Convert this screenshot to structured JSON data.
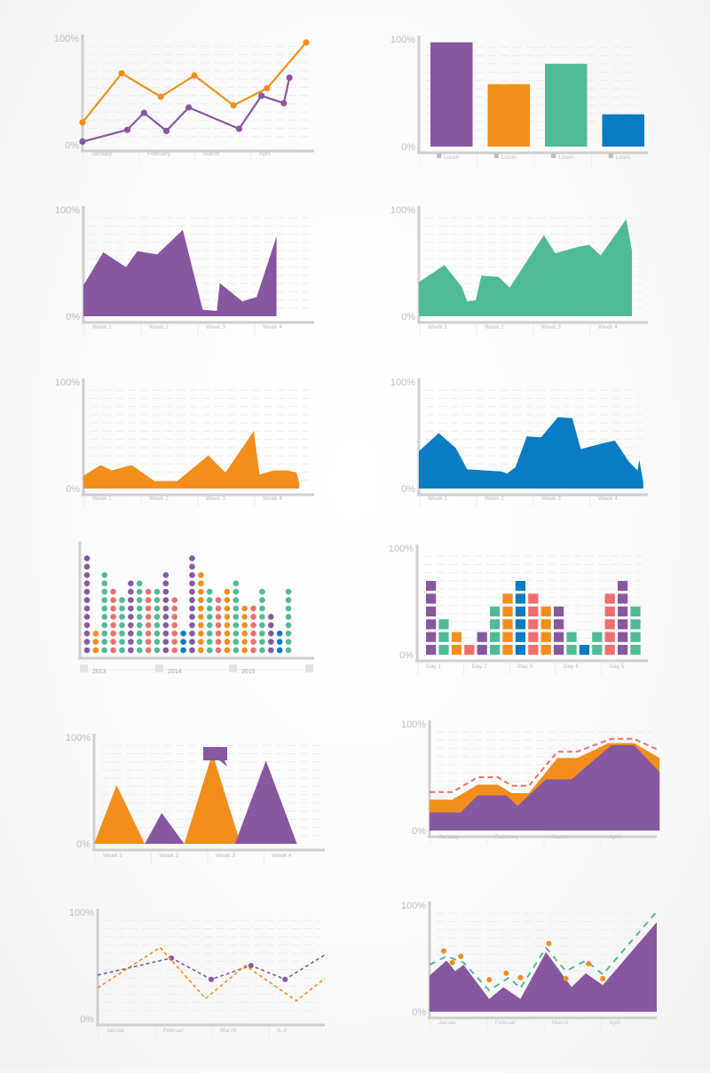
{
  "charts": [
    {
      "id": "months-line",
      "type": "line",
      "ytick_top": "100%",
      "ytick_bottom": "0%",
      "categories": [
        "January",
        "February",
        "March",
        "April"
      ],
      "sublabel": "",
      "series": [
        {
          "color": "#F28E1C",
          "points": [
            [
              0,
              21
            ],
            [
              0.7,
              67
            ],
            [
              1.4,
              45
            ],
            [
              2.0,
              65
            ],
            [
              2.7,
              37
            ],
            [
              3.3,
              53
            ],
            [
              4.0,
              96
            ]
          ]
        },
        {
          "color": "#8757A0",
          "points": [
            [
              0,
              3
            ],
            [
              0.8,
              14
            ],
            [
              1.1,
              30
            ],
            [
              1.5,
              13
            ],
            [
              1.9,
              35
            ],
            [
              2.8,
              15
            ],
            [
              3.2,
              46
            ],
            [
              3.6,
              39
            ],
            [
              3.7,
              63
            ]
          ]
        }
      ]
    },
    {
      "id": "lorem-bars",
      "type": "bar",
      "ytick_top": "100%",
      "ytick_bottom": "0%",
      "categories": [
        "Lorem",
        "Lorem",
        "Lorem",
        "Lorem"
      ],
      "values": [
        97,
        58,
        77,
        30
      ],
      "colors": [
        "#8757A0",
        "#F28E1C",
        "#50BA97",
        "#0A7BC5"
      ]
    },
    {
      "id": "weeks-area-purple",
      "type": "area",
      "ytick_top": "100%",
      "ytick_bottom": "0%",
      "categories": [
        "Week 1",
        "Week 2",
        "Week 3",
        "Week 4"
      ],
      "color": "#8757A0",
      "points": [
        [
          0,
          29
        ],
        [
          0.35,
          60
        ],
        [
          0.75,
          46
        ],
        [
          0.95,
          61
        ],
        [
          1.3,
          58
        ],
        [
          1.75,
          81
        ],
        [
          2.1,
          6
        ],
        [
          2.35,
          5
        ],
        [
          2.4,
          31
        ],
        [
          2.8,
          14
        ],
        [
          3.05,
          18
        ],
        [
          3.4,
          75
        ],
        [
          3.4,
          0
        ]
      ]
    },
    {
      "id": "weeks-area-green",
      "type": "area",
      "ytick_top": "100%",
      "ytick_bottom": "0%",
      "categories": [
        "Week 1",
        "Week 2",
        "Week 3",
        "Week 4"
      ],
      "color": "#50BA97",
      "points": [
        [
          0,
          32
        ],
        [
          0.45,
          48
        ],
        [
          0.75,
          28
        ],
        [
          0.85,
          14
        ],
        [
          1.0,
          15
        ],
        [
          1.1,
          38
        ],
        [
          1.4,
          37
        ],
        [
          1.6,
          27
        ],
        [
          2.2,
          76
        ],
        [
          2.4,
          59
        ],
        [
          2.8,
          65
        ],
        [
          3.0,
          67
        ],
        [
          3.2,
          57
        ],
        [
          3.65,
          91
        ],
        [
          3.75,
          62
        ],
        [
          3.75,
          0
        ]
      ]
    },
    {
      "id": "weeks-area-orange",
      "type": "area",
      "ytick_top": "100%",
      "ytick_bottom": "0%",
      "categories": [
        "Week 1",
        "Week 2",
        "Week 3",
        "Week 4"
      ],
      "color": "#F28E1C",
      "points": [
        [
          0,
          12
        ],
        [
          0.3,
          22
        ],
        [
          0.5,
          17
        ],
        [
          0.85,
          22
        ],
        [
          1.25,
          7
        ],
        [
          1.65,
          7
        ],
        [
          2.2,
          31
        ],
        [
          2.5,
          15
        ],
        [
          3.0,
          54
        ],
        [
          3.1,
          13
        ],
        [
          3.35,
          17
        ],
        [
          3.6,
          17
        ],
        [
          3.75,
          15
        ],
        [
          3.8,
          5
        ],
        [
          3.8,
          0
        ]
      ]
    },
    {
      "id": "weeks-area-blue",
      "type": "area",
      "ytick_top": "100%",
      "ytick_bottom": "0%",
      "categories": [
        "Week 1",
        "Week 2",
        "Week 3",
        "Week 4"
      ],
      "color": "#0A7BC5",
      "points": [
        [
          0,
          35
        ],
        [
          0.35,
          52
        ],
        [
          0.65,
          38
        ],
        [
          0.85,
          18
        ],
        [
          1.45,
          16
        ],
        [
          1.55,
          14
        ],
        [
          1.7,
          20
        ],
        [
          1.9,
          49
        ],
        [
          2.15,
          48
        ],
        [
          2.45,
          67
        ],
        [
          2.7,
          66
        ],
        [
          2.85,
          37
        ],
        [
          3.2,
          42
        ],
        [
          3.45,
          45
        ],
        [
          3.7,
          25
        ],
        [
          3.85,
          17
        ],
        [
          3.88,
          27
        ],
        [
          3.95,
          6
        ],
        [
          3.95,
          0
        ]
      ]
    },
    {
      "id": "years-dots",
      "type": "dot-columns",
      "categories": [
        "2013",
        "2014",
        "2015"
      ],
      "colors": {
        "p": "#8757A0",
        "o": "#F28E1C",
        "g": "#50BA97",
        "r": "#EE6F6E",
        "b": "#0A7BC5"
      },
      "columns": [
        {
          "color": "p",
          "count": 12
        },
        {
          "color": "o",
          "count": 3
        },
        {
          "color": "g",
          "count": 10
        },
        {
          "color": "r",
          "count": 8
        },
        {
          "color": "g",
          "count": 7
        },
        {
          "color": "p",
          "count": 9
        },
        {
          "color": "g",
          "count": 9
        },
        {
          "color": "r",
          "count": 8
        },
        {
          "color": "g",
          "count": 8
        },
        {
          "color": "p",
          "count": 10
        },
        {
          "color": "r",
          "count": 7
        },
        {
          "color": "b",
          "count": 3
        },
        {
          "color": "p",
          "count": 12
        },
        {
          "color": "o",
          "count": 10
        },
        {
          "color": "g",
          "count": 8
        },
        {
          "color": "r",
          "count": 7
        },
        {
          "color": "o",
          "count": 8
        },
        {
          "color": "g",
          "count": 9
        },
        {
          "color": "o",
          "count": 6
        },
        {
          "color": "r",
          "count": 6
        },
        {
          "color": "g",
          "count": 8
        },
        {
          "color": "p",
          "count": 5
        },
        {
          "color": "b",
          "count": 3
        },
        {
          "color": "g",
          "count": 8
        }
      ]
    },
    {
      "id": "days-squares",
      "type": "square-columns",
      "ytick_top": "100%",
      "ytick_bottom": "0%",
      "categories": [
        "Day 1",
        "Day 2",
        "Day 3",
        "Day 4",
        "Day 5"
      ],
      "colors": {
        "p": "#8757A0",
        "o": "#F28E1C",
        "g": "#50BA97",
        "r": "#EE6F6E",
        "b": "#0A7BC5"
      },
      "columns": [
        {
          "color": "p",
          "count": 6
        },
        {
          "color": "g",
          "count": 3
        },
        {
          "color": "o",
          "count": 2
        },
        {
          "color": "r",
          "count": 1
        },
        {
          "color": "p",
          "count": 2
        },
        {
          "color": "g",
          "count": 4
        },
        {
          "color": "o",
          "count": 5
        },
        {
          "color": "b",
          "count": 6
        },
        {
          "color": "r",
          "count": 5
        },
        {
          "color": "o",
          "count": 4
        },
        {
          "color": "p",
          "count": 4
        },
        {
          "color": "g",
          "count": 2
        },
        {
          "color": "b",
          "count": 1
        },
        {
          "color": "g",
          "count": 2
        },
        {
          "color": "r",
          "count": 5
        },
        {
          "color": "p",
          "count": 6
        },
        {
          "color": "g",
          "count": 4
        }
      ]
    },
    {
      "id": "weeks-peaks",
      "type": "area",
      "ytick_top": "100%",
      "ytick_bottom": "0%",
      "categories": [
        "Week 1",
        "Week 2",
        "Week 3",
        "Week 4"
      ],
      "colors": [
        "#F28E1C",
        "#8757A0",
        "#F28E1C",
        "#8757A0"
      ],
      "peaks": [
        [
          0.4,
          55
        ],
        [
          1.2,
          29
        ],
        [
          2.1,
          85
        ],
        [
          3.05,
          78
        ]
      ],
      "bases": [
        [
          0,
          0.9
        ],
        [
          0.9,
          1.6
        ],
        [
          1.6,
          2.6
        ],
        [
          2.5,
          3.6
        ]
      ],
      "callout_color": "#8757A0"
    },
    {
      "id": "months-stacked",
      "type": "area",
      "ytick_top": "100%",
      "ytick_bottom": "0%",
      "categories": [
        "January",
        "February",
        "March",
        "April"
      ],
      "sublabel": "",
      "purple": {
        "color": "#8757A0",
        "points": [
          [
            0,
            17
          ],
          [
            0.55,
            17
          ],
          [
            0.85,
            33
          ],
          [
            1.35,
            33
          ],
          [
            1.55,
            23
          ],
          [
            2.05,
            48
          ],
          [
            2.5,
            48
          ],
          [
            3.2,
            80
          ],
          [
            3.6,
            80
          ],
          [
            4.05,
            55
          ]
        ]
      },
      "orange": {
        "color": "#F28E1C",
        "points": [
          [
            0,
            29
          ],
          [
            0.4,
            29
          ],
          [
            0.85,
            43
          ],
          [
            1.2,
            43
          ],
          [
            1.45,
            35
          ],
          [
            1.75,
            35
          ],
          [
            2.25,
            68
          ],
          [
            2.6,
            68
          ],
          [
            3.15,
            82
          ],
          [
            3.6,
            82
          ],
          [
            4.05,
            68
          ]
        ]
      },
      "dashed": {
        "color": "#EE6F6E",
        "points": [
          [
            0,
            36
          ],
          [
            0.4,
            36
          ],
          [
            0.85,
            50
          ],
          [
            1.2,
            50
          ],
          [
            1.45,
            42
          ],
          [
            1.75,
            42
          ],
          [
            2.25,
            74
          ],
          [
            2.6,
            74
          ],
          [
            3.2,
            86
          ],
          [
            3.6,
            86
          ],
          [
            4.05,
            75
          ]
        ]
      }
    },
    {
      "id": "months-dashed",
      "type": "line",
      "ytick_top": "100%",
      "ytick_bottom": "0%",
      "categories": [
        "Januar",
        "Februar",
        "March",
        "A..il"
      ],
      "sublabel": "",
      "series": [
        {
          "color": "#8757A0",
          "dashed": true,
          "points": [
            [
              0,
              41
            ],
            [
              1.3,
              57
            ],
            [
              2.0,
              37
            ],
            [
              2.7,
              50
            ],
            [
              3.3,
              37
            ],
            [
              4.0,
              60
            ]
          ],
          "markers": [
            1,
            2,
            3,
            4
          ]
        },
        {
          "color": "#F28E1C",
          "dashed": true,
          "points": [
            [
              0,
              29
            ],
            [
              1.1,
              67
            ],
            [
              1.9,
              19
            ],
            [
              2.6,
              50
            ],
            [
              3.5,
              17
            ],
            [
              4.0,
              38
            ]
          ],
          "markers": []
        }
      ]
    },
    {
      "id": "months-area-dash-dots",
      "type": "area",
      "ytick_top": "100%",
      "ytick_bottom": "0%",
      "categories": [
        "Januar",
        "Februar",
        "March",
        "April"
      ],
      "sublabel": "",
      "area": {
        "color": "#8757A0",
        "points": [
          [
            0,
            34
          ],
          [
            0.3,
            48
          ],
          [
            0.45,
            38
          ],
          [
            0.6,
            44
          ],
          [
            1.05,
            12
          ],
          [
            1.3,
            23
          ],
          [
            1.6,
            12
          ],
          [
            2.05,
            56
          ],
          [
            2.5,
            23
          ],
          [
            2.75,
            36
          ],
          [
            3.05,
            25
          ],
          [
            4.0,
            84
          ]
        ]
      },
      "dashed": {
        "color": "#50BA97",
        "points": [
          [
            0,
            44
          ],
          [
            0.3,
            52
          ],
          [
            0.6,
            46
          ],
          [
            1.05,
            20
          ],
          [
            1.4,
            32
          ],
          [
            1.6,
            22
          ],
          [
            2.05,
            60
          ],
          [
            2.4,
            38
          ],
          [
            2.75,
            48
          ],
          [
            3.05,
            35
          ],
          [
            4.0,
            94
          ]
        ]
      },
      "dots": {
        "color": "#F28E1C",
        "points": [
          [
            0.25,
            57
          ],
          [
            0.4,
            46
          ],
          [
            0.55,
            52
          ],
          [
            1.05,
            30
          ],
          [
            1.35,
            36
          ],
          [
            1.6,
            32
          ],
          [
            2.1,
            64
          ],
          [
            2.4,
            31
          ],
          [
            2.8,
            45
          ],
          [
            3.05,
            31
          ]
        ]
      }
    }
  ]
}
